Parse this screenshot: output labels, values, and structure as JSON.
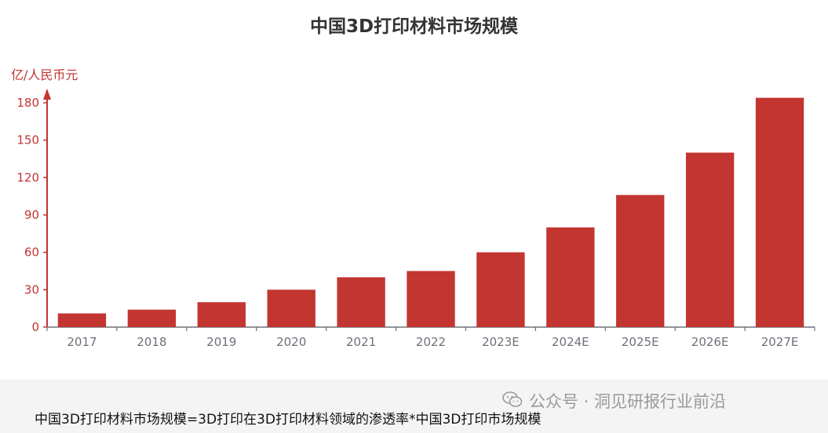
{
  "chart_data": {
    "type": "bar",
    "title": "中国3D打印材料市场规模",
    "ylabel": "亿/人民币元",
    "xlabel": "",
    "categories": [
      "2017",
      "2018",
      "2019",
      "2020",
      "2021",
      "2022",
      "2023E",
      "2024E",
      "2025E",
      "2026E",
      "2027E"
    ],
    "values": [
      11,
      14,
      20,
      30,
      40,
      45,
      60,
      80,
      106,
      140,
      184
    ],
    "ylim": [
      0,
      180
    ],
    "yticks": [
      0,
      30,
      60,
      90,
      120,
      150,
      180
    ],
    "grid": false,
    "legend": "none",
    "bar_color": "#c23531",
    "axis_color": "#c23531"
  },
  "watermark": "公众号 · 洞见研报行业前沿",
  "caption": "中国3D打印材料市场规模=3D打印在3D打印材料领域的渗透率*中国3D打印市场规模"
}
